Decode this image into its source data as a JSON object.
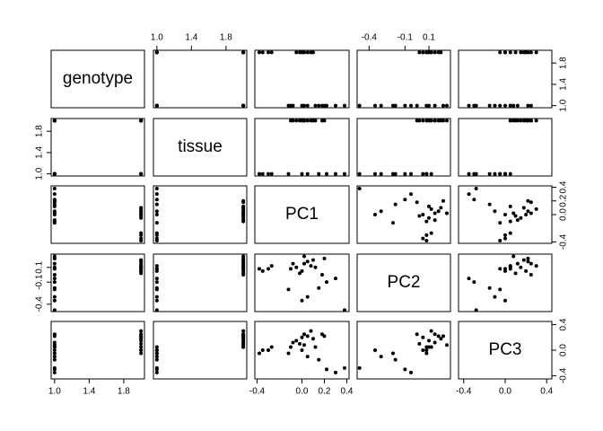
{
  "chart_data": {
    "type": "scatter-matrix",
    "variables": [
      {
        "name": "genotype",
        "lim": [
          0.96,
          2.04
        ],
        "ticks": [
          {
            "value": 1,
            "label": "1.0"
          },
          1.4,
          1.8
        ],
        "values": [
          2,
          2,
          2,
          2,
          2,
          2,
          2,
          2,
          2,
          2,
          2,
          1,
          1,
          1,
          1,
          1,
          1,
          1,
          1,
          1,
          1,
          1,
          1,
          1
        ]
      },
      {
        "name": "tissue",
        "lim": [
          0.96,
          2.04
        ],
        "ticks": [
          {
            "value": 1,
            "label": "1.0"
          },
          1.4,
          1.8
        ],
        "values": [
          1,
          1,
          1,
          1,
          2,
          2,
          2,
          2,
          2,
          2,
          2,
          1,
          1,
          1,
          1,
          1,
          1,
          1,
          2,
          2,
          2,
          2,
          2,
          2
        ]
      },
      {
        "name": "PC1",
        "lim": [
          -0.42,
          0.42
        ],
        "ticks": [
          -0.4,
          {
            "value": 0,
            "label": "0.0"
          },
          0.2,
          0.4
        ],
        "values": [
          -0.38,
          -0.35,
          -0.3,
          -0.27,
          -0.02,
          0,
          0.02,
          0.05,
          -0.05,
          0.08,
          0.1,
          -0.12,
          0,
          0.05,
          0.15,
          0.22,
          0.38,
          0.3,
          -0.1,
          0.12,
          0.2,
          -0.08,
          0.18,
          0.02
        ]
      },
      {
        "name": "PC2",
        "lim": [
          -0.5,
          0.28
        ],
        "ticks": [
          -0.4,
          -0.1,
          0.1
        ],
        "values": [
          0.08,
          0.05,
          0.08,
          0.12,
          0.02,
          0.05,
          0.15,
          0.18,
          0.1,
          0.12,
          0.2,
          -0.2,
          -0.35,
          -0.3,
          -0.18,
          -0.1,
          -0.48,
          -0.05,
          0.08,
          0.1,
          0.22,
          0.15,
          0,
          0.25
        ]
      },
      {
        "name": "PC3",
        "lim": [
          -0.45,
          0.45
        ],
        "ticks": [
          -0.4,
          {
            "value": 0,
            "label": "0.0"
          },
          0.4
        ],
        "values": [
          -0.05,
          0,
          0,
          0.05,
          0.1,
          0.2,
          0.25,
          0.22,
          0.15,
          0.3,
          0.18,
          -0.05,
          0,
          -0.1,
          -0.15,
          -0.3,
          -0.28,
          -0.35,
          0.05,
          0.05,
          0.22,
          0.12,
          0.25,
          0.08
        ]
      }
    ]
  }
}
